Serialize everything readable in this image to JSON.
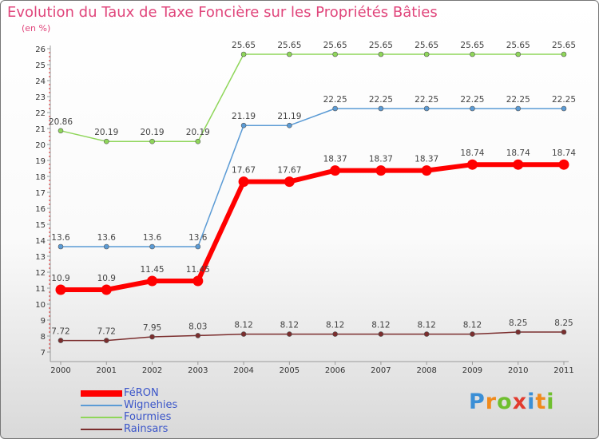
{
  "chart_data": {
    "type": "line",
    "title": "Evolution du Taux de Taxe Foncière sur les Propriétés Bâties",
    "unit_label": "(en %)",
    "x": [
      "2000",
      "2001",
      "2002",
      "2003",
      "2004",
      "2005",
      "2006",
      "2007",
      "2008",
      "2009",
      "2010",
      "2011"
    ],
    "ylim": [
      7,
      26
    ],
    "yticks": [
      7,
      8,
      9,
      10,
      11,
      12,
      13,
      14,
      15,
      16,
      17,
      18,
      19,
      20,
      21,
      22,
      23,
      24,
      25,
      26
    ],
    "series": [
      {
        "name": "FéRON",
        "color": "#ff0000",
        "values": [
          10.9,
          10.9,
          11.45,
          11.45,
          17.67,
          17.67,
          18.37,
          18.37,
          18.37,
          18.74,
          18.74,
          18.74
        ],
        "labels": [
          "10.9",
          "10.9",
          "11.45",
          "11.45",
          "17.67",
          "17.67",
          "18.37",
          "18.37",
          "18.37",
          "18.74",
          "18.74",
          "18.74"
        ]
      },
      {
        "name": "Wignehies",
        "color": "#5b9bd5",
        "values": [
          13.6,
          13.6,
          13.6,
          13.6,
          21.19,
          21.19,
          22.25,
          22.25,
          22.25,
          22.25,
          22.25,
          22.25
        ],
        "labels": [
          "13.6",
          "13.6",
          "13.6",
          "13.6",
          "21.19",
          "21.19",
          "22.25",
          "22.25",
          "22.25",
          "22.25",
          "22.25",
          "22.25"
        ]
      },
      {
        "name": "Fourmies",
        "color": "#8fd65a",
        "values": [
          20.86,
          20.19,
          20.19,
          20.19,
          25.65,
          25.65,
          25.65,
          25.65,
          25.65,
          25.65,
          25.65,
          25.65
        ],
        "labels": [
          "20.86",
          "20.19",
          "20.19",
          "20.19",
          "25.65",
          "25.65",
          "25.65",
          "25.65",
          "25.65",
          "25.65",
          "25.65",
          "25.65"
        ]
      },
      {
        "name": "Rainsars",
        "color": "#7b2e2e",
        "values": [
          7.72,
          7.72,
          7.95,
          8.03,
          8.12,
          8.12,
          8.12,
          8.12,
          8.12,
          8.12,
          8.25,
          8.25
        ],
        "labels": [
          "7.72",
          "7.72",
          "7.95",
          "8.03",
          "8.12",
          "8.12",
          "8.12",
          "8.12",
          "8.12",
          "8.12",
          "8.25",
          "8.25"
        ]
      }
    ],
    "legend": "bottom-left",
    "grid": false
  },
  "branding": {
    "logo_text": "Proxiti",
    "letters": [
      "P",
      "r",
      "o",
      "x",
      "i",
      "t",
      "i"
    ],
    "letter_colors": [
      "#3b8fd6",
      "#f08a1c",
      "#6fbf2f",
      "#e23b2e",
      "#3b8fd6",
      "#f08a1c",
      "#6fbf2f"
    ]
  }
}
